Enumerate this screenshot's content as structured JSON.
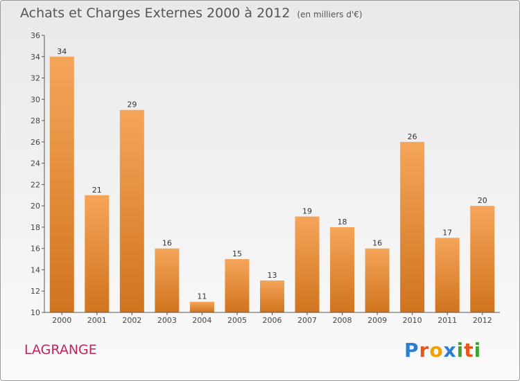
{
  "title": "Achats et Charges Externes 2000 à 2012",
  "subtitle": "(en milliers d'€)",
  "region": "LAGRANGE",
  "logo": {
    "letters": [
      "P",
      "r",
      "o",
      "x",
      "i",
      "t",
      "i"
    ],
    "colors": [
      "#2a7fd4",
      "#e8561c",
      "#f2a100",
      "#2a7fd4",
      "#3fa535",
      "#e8561c",
      "#3fa535"
    ]
  },
  "colors": {
    "bar_top": "#f5a55a",
    "bar_bottom": "#d0741e",
    "axis": "#555555",
    "region": "#c0245c"
  },
  "chart_data": {
    "type": "bar",
    "title": "Achats et Charges Externes 2000 à 2012",
    "subtitle": "(en milliers d'€)",
    "categories": [
      "2000",
      "2001",
      "2002",
      "2003",
      "2004",
      "2005",
      "2006",
      "2007",
      "2008",
      "2009",
      "2010",
      "2011",
      "2012"
    ],
    "values": [
      34,
      21,
      29,
      16,
      11,
      15,
      13,
      19,
      18,
      16,
      26,
      17,
      20
    ],
    "ylim": [
      10,
      36
    ],
    "yticks": [
      10,
      12,
      14,
      16,
      18,
      20,
      22,
      24,
      26,
      28,
      30,
      32,
      34,
      36
    ],
    "grid": false,
    "data_labels": true
  }
}
